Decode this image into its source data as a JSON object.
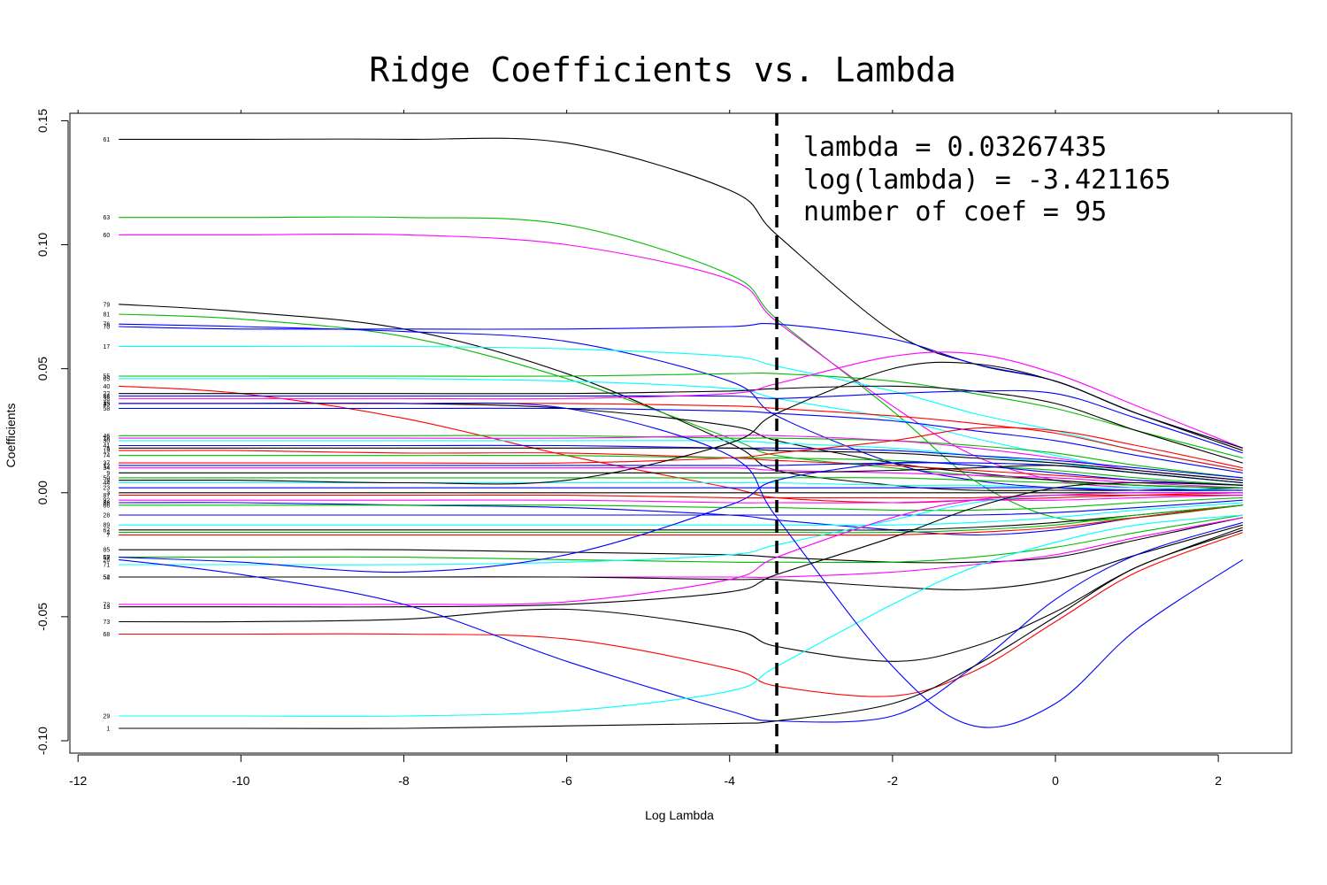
{
  "chart_data": {
    "type": "line",
    "title": "Ridge Coefficients vs. Lambda",
    "xlabel": "Log Lambda",
    "ylabel": "Coefficients",
    "xlim": [
      -12.1,
      2.9
    ],
    "ylim": [
      -0.105,
      0.153
    ],
    "xticks": [
      -12,
      -10,
      -8,
      -6,
      -4,
      -2,
      0,
      2
    ],
    "xtick_labels": [
      "-12",
      "-10",
      "-8",
      "-6",
      "-4",
      "-2",
      "0",
      "2"
    ],
    "yticks": [
      -0.1,
      -0.05,
      0.0,
      0.05,
      0.1,
      0.15
    ],
    "ytick_labels": [
      "-0.10",
      "-0.05",
      "0.00",
      "0.05",
      "0.10",
      "0.15"
    ],
    "grid": false,
    "legend": "none",
    "vline": {
      "x": -3.421165
    },
    "annotations": [
      "lambda = 0.03267435",
      "log(lambda) = -3.421165",
      "number of coef = 95"
    ],
    "x": [
      -11.5,
      -10,
      -8,
      -6,
      -4,
      -3.42,
      -2,
      -1,
      0,
      1,
      2.3
    ],
    "series": [
      {
        "label": "61",
        "color": "#000000",
        "values": [
          0.1425,
          0.1425,
          0.1425,
          0.141,
          0.122,
          0.104,
          0.065,
          0.052,
          0.045,
          0.032,
          0.017
        ]
      },
      {
        "label": "63",
        "color": "#00bb00",
        "values": [
          0.111,
          0.111,
          0.111,
          0.108,
          0.088,
          0.07,
          0.033,
          0.005,
          -0.01,
          -0.01,
          -0.005
        ]
      },
      {
        "label": "60",
        "color": "#ff00ff",
        "values": [
          0.104,
          0.104,
          0.104,
          0.1,
          0.086,
          0.069,
          0.035,
          0.015,
          0.005,
          0.002,
          0.001
        ]
      },
      {
        "label": "79",
        "color": "#000000",
        "values": [
          0.076,
          0.073,
          0.066,
          0.048,
          0.02,
          0.009,
          0.003,
          0.001,
          0.001,
          0.001,
          0.002
        ]
      },
      {
        "label": "81",
        "color": "#00bb00",
        "values": [
          0.072,
          0.07,
          0.063,
          0.046,
          0.022,
          0.015,
          0.01,
          0.007,
          0.005,
          0.003,
          0.002
        ]
      },
      {
        "label": "70",
        "color": "#0000ff",
        "values": [
          0.067,
          0.066,
          0.066,
          0.066,
          0.067,
          0.068,
          0.062,
          0.052,
          0.045,
          0.032,
          0.018
        ]
      },
      {
        "label": "76",
        "color": "#0000ff",
        "values": [
          0.068,
          0.067,
          0.065,
          0.061,
          0.045,
          0.031,
          0.012,
          0.005,
          0.002,
          0.001,
          0.001
        ]
      },
      {
        "label": "17",
        "color": "#00ffff",
        "values": [
          0.059,
          0.059,
          0.059,
          0.058,
          0.055,
          0.051,
          0.041,
          0.032,
          0.025,
          0.017,
          0.009
        ]
      },
      {
        "label": "55",
        "color": "#00bb00",
        "values": [
          0.047,
          0.047,
          0.047,
          0.047,
          0.048,
          0.048,
          0.045,
          0.04,
          0.034,
          0.025,
          0.014
        ]
      },
      {
        "label": "65",
        "color": "#00ffff",
        "values": [
          0.046,
          0.046,
          0.046,
          0.045,
          0.042,
          0.038,
          0.03,
          0.022,
          0.015,
          0.009,
          0.005
        ]
      },
      {
        "label": "40",
        "color": "#ff0000",
        "values": [
          0.043,
          0.04,
          0.03,
          0.015,
          0.002,
          -0.002,
          -0.004,
          -0.003,
          -0.002,
          -0.001,
          0.0
        ]
      },
      {
        "label": "22",
        "color": "#000000",
        "values": [
          0.04,
          0.04,
          0.04,
          0.04,
          0.041,
          0.042,
          0.043,
          0.041,
          0.036,
          0.025,
          0.012
        ]
      },
      {
        "label": "84",
        "color": "#0000ff",
        "values": [
          0.039,
          0.039,
          0.039,
          0.039,
          0.039,
          0.038,
          0.04,
          0.041,
          0.04,
          0.03,
          0.016
        ]
      },
      {
        "label": "38",
        "color": "#ff00ff",
        "values": [
          0.038,
          0.038,
          0.038,
          0.038,
          0.04,
          0.044,
          0.055,
          0.056,
          0.048,
          0.035,
          0.018
        ]
      },
      {
        "label": "35",
        "color": "#ff0000",
        "values": [
          0.036,
          0.036,
          0.036,
          0.036,
          0.035,
          0.034,
          0.031,
          0.028,
          0.024,
          0.017,
          0.009
        ]
      },
      {
        "label": "58",
        "color": "#0000ff",
        "values": [
          0.034,
          0.034,
          0.034,
          0.034,
          0.033,
          0.032,
          0.029,
          0.025,
          0.021,
          0.015,
          0.008
        ]
      },
      {
        "label": "15",
        "color": "#000000",
        "values": [
          0.036,
          0.036,
          0.036,
          0.034,
          0.027,
          0.021,
          0.012,
          0.008,
          0.005,
          0.003,
          0.002
        ]
      },
      {
        "label": "46",
        "color": "#00bb00",
        "values": [
          0.023,
          0.023,
          0.023,
          0.023,
          0.022,
          0.022,
          0.021,
          0.019,
          0.016,
          0.011,
          0.006
        ]
      },
      {
        "label": "18",
        "color": "#ff00ff",
        "values": [
          0.022,
          0.022,
          0.022,
          0.022,
          0.023,
          0.023,
          0.021,
          0.018,
          0.014,
          0.009,
          0.005
        ]
      },
      {
        "label": "30",
        "color": "#00ffff",
        "values": [
          0.021,
          0.021,
          0.021,
          0.021,
          0.021,
          0.02,
          0.018,
          0.015,
          0.012,
          0.008,
          0.004
        ]
      },
      {
        "label": "41",
        "color": "#0000ff",
        "values": [
          0.019,
          0.019,
          0.019,
          0.019,
          0.018,
          0.018,
          0.017,
          0.015,
          0.013,
          0.01,
          0.006
        ]
      },
      {
        "label": "5",
        "color": "#000000",
        "values": [
          0.018,
          0.018,
          0.018,
          0.018,
          0.018,
          0.017,
          0.016,
          0.014,
          0.012,
          0.009,
          0.005
        ]
      },
      {
        "label": "19",
        "color": "#ff0000",
        "values": [
          0.017,
          0.017,
          0.016,
          0.016,
          0.014,
          0.013,
          0.011,
          0.009,
          0.007,
          0.005,
          0.003
        ]
      },
      {
        "label": "74",
        "color": "#00bb00",
        "values": [
          0.015,
          0.015,
          0.015,
          0.015,
          0.014,
          0.014,
          0.013,
          0.011,
          0.009,
          0.006,
          0.003
        ]
      },
      {
        "label": "37",
        "color": "#ff0000",
        "values": [
          0.012,
          0.012,
          0.012,
          0.012,
          0.014,
          0.016,
          0.021,
          0.026,
          0.025,
          0.019,
          0.01
        ]
      },
      {
        "label": "12",
        "color": "#0000ff",
        "values": [
          0.011,
          0.011,
          0.011,
          0.011,
          0.011,
          0.011,
          0.012,
          0.012,
          0.011,
          0.008,
          0.004
        ]
      },
      {
        "label": "34",
        "color": "#ff00ff",
        "values": [
          0.01,
          0.01,
          0.01,
          0.01,
          0.01,
          0.009,
          0.008,
          0.007,
          0.006,
          0.004,
          0.002
        ]
      },
      {
        "label": "9",
        "color": "#000000",
        "values": [
          0.008,
          0.008,
          0.008,
          0.008,
          0.008,
          0.008,
          0.009,
          0.01,
          0.011,
          0.008,
          0.004
        ]
      },
      {
        "label": "50",
        "color": "#00bb00",
        "values": [
          0.006,
          0.006,
          0.006,
          0.006,
          0.006,
          0.006,
          0.006,
          0.005,
          0.004,
          0.003,
          0.002
        ]
      },
      {
        "label": "44",
        "color": "#00ffff",
        "values": [
          0.004,
          0.004,
          0.004,
          0.004,
          0.004,
          0.004,
          0.003,
          0.003,
          0.002,
          0.002,
          0.001
        ]
      },
      {
        "label": "23",
        "color": "#0000ff",
        "values": [
          0.002,
          0.002,
          0.002,
          0.002,
          0.002,
          0.002,
          0.002,
          0.002,
          0.002,
          0.001,
          0.001
        ]
      },
      {
        "label": "3",
        "color": "#000000",
        "values": [
          0.0,
          0.0,
          0.0,
          0.0,
          0.0,
          0.0,
          0.0,
          0.0,
          0.0,
          0.0,
          0.0
        ]
      },
      {
        "label": "87",
        "color": "#ff0000",
        "values": [
          -0.001,
          -0.001,
          -0.001,
          -0.001,
          -0.002,
          -0.002,
          -0.002,
          -0.002,
          -0.001,
          -0.001,
          -0.001
        ]
      },
      {
        "label": "92",
        "color": "#ff00ff",
        "values": [
          -0.003,
          -0.003,
          -0.003,
          -0.003,
          -0.004,
          -0.004,
          -0.004,
          -0.003,
          -0.003,
          -0.002,
          -0.001
        ]
      },
      {
        "label": "88",
        "color": "#0000ff",
        "values": [
          -0.004,
          -0.004,
          -0.005,
          -0.006,
          -0.009,
          -0.011,
          -0.015,
          -0.017,
          -0.015,
          -0.01,
          -0.005
        ]
      },
      {
        "label": "66",
        "color": "#00bb00",
        "values": [
          -0.005,
          -0.005,
          -0.005,
          -0.005,
          -0.006,
          -0.006,
          -0.007,
          -0.007,
          -0.006,
          -0.004,
          -0.002
        ]
      },
      {
        "label": "28",
        "color": "#0000ff",
        "values": [
          -0.009,
          -0.009,
          -0.009,
          -0.009,
          -0.009,
          -0.009,
          -0.009,
          -0.009,
          -0.008,
          -0.006,
          -0.003
        ]
      },
      {
        "label": "89",
        "color": "#00ffff",
        "values": [
          -0.013,
          -0.013,
          -0.013,
          -0.013,
          -0.013,
          -0.013,
          -0.013,
          -0.012,
          -0.01,
          -0.007,
          -0.004
        ]
      },
      {
        "label": "67",
        "color": "#000000",
        "values": [
          -0.015,
          -0.015,
          -0.015,
          -0.015,
          -0.015,
          -0.015,
          -0.015,
          -0.014,
          -0.012,
          -0.009,
          -0.005
        ]
      },
      {
        "label": "7",
        "color": "#ff0000",
        "values": [
          -0.017,
          -0.017,
          -0.017,
          -0.017,
          -0.017,
          -0.017,
          -0.017,
          -0.016,
          -0.014,
          -0.01,
          -0.005
        ]
      },
      {
        "label": "2",
        "color": "#00bb00",
        "values": [
          -0.016,
          -0.016,
          -0.016,
          -0.016,
          -0.016,
          -0.016,
          -0.016,
          -0.015,
          -0.013,
          -0.009,
          -0.005
        ]
      },
      {
        "label": "85",
        "color": "#000000",
        "values": [
          -0.023,
          -0.023,
          -0.023,
          -0.024,
          -0.025,
          -0.026,
          -0.028,
          -0.028,
          -0.026,
          -0.019,
          -0.01
        ]
      },
      {
        "label": "69",
        "color": "#00bb00",
        "values": [
          -0.026,
          -0.026,
          -0.026,
          -0.027,
          -0.028,
          -0.028,
          -0.028,
          -0.026,
          -0.022,
          -0.016,
          -0.009
        ]
      },
      {
        "label": "71",
        "color": "#00ffff",
        "values": [
          -0.029,
          -0.029,
          -0.029,
          -0.028,
          -0.025,
          -0.021,
          -0.011,
          -0.004,
          -0.001,
          0.0,
          0.0
        ]
      },
      {
        "label": "52",
        "color": "#ff00ff",
        "values": [
          -0.034,
          -0.034,
          -0.034,
          -0.034,
          -0.034,
          -0.034,
          -0.032,
          -0.029,
          -0.025,
          -0.018,
          -0.01
        ]
      },
      {
        "label": "54",
        "color": "#000000",
        "values": [
          -0.034,
          -0.034,
          -0.034,
          -0.034,
          -0.035,
          -0.035,
          -0.038,
          -0.039,
          -0.035,
          -0.025,
          -0.013
        ]
      },
      {
        "label": "57",
        "color": "#0000ff",
        "values": [
          -0.026,
          -0.028,
          -0.032,
          -0.025,
          -0.005,
          0.005,
          0.012,
          0.011,
          0.008,
          0.005,
          0.003
        ]
      },
      {
        "label": "72",
        "color": "#ff00ff",
        "values": [
          -0.045,
          -0.045,
          -0.045,
          -0.044,
          -0.035,
          -0.026,
          -0.01,
          -0.003,
          -0.001,
          0.0,
          0.0
        ]
      },
      {
        "label": "13",
        "color": "#000000",
        "values": [
          -0.046,
          -0.046,
          -0.046,
          -0.045,
          -0.04,
          -0.033,
          -0.018,
          -0.006,
          0.002,
          0.004,
          0.003
        ]
      },
      {
        "label": "73",
        "color": "#000000",
        "values": [
          -0.052,
          -0.052,
          -0.051,
          -0.047,
          -0.055,
          -0.062,
          -0.068,
          -0.062,
          -0.048,
          -0.03,
          -0.014
        ]
      },
      {
        "label": "68",
        "color": "#ff0000",
        "values": [
          -0.057,
          -0.057,
          -0.057,
          -0.059,
          -0.071,
          -0.078,
          -0.082,
          -0.072,
          -0.052,
          -0.032,
          -0.016
        ]
      },
      {
        "label": "26",
        "color": "#0000ff",
        "values": [
          -0.027,
          -0.033,
          -0.045,
          -0.068,
          -0.088,
          -0.092,
          -0.09,
          -0.07,
          -0.043,
          -0.025,
          -0.012
        ]
      },
      {
        "label": "29",
        "color": "#00ffff",
        "values": [
          -0.09,
          -0.09,
          -0.09,
          -0.088,
          -0.08,
          -0.07,
          -0.045,
          -0.03,
          -0.02,
          -0.013,
          -0.009
        ]
      },
      {
        "label": "1",
        "color": "#000000",
        "values": [
          -0.095,
          -0.095,
          -0.095,
          -0.094,
          -0.093,
          -0.092,
          -0.085,
          -0.07,
          -0.05,
          -0.03,
          -0.015
        ]
      },
      {
        "label": "43",
        "color": "#0000ff",
        "values": [
          0.036,
          0.036,
          0.036,
          0.034,
          0.015,
          -0.01,
          -0.07,
          -0.094,
          -0.085,
          -0.055,
          -0.027
        ]
      },
      {
        "label": "8",
        "color": "#000000",
        "values": [
          0.005,
          0.005,
          0.004,
          0.005,
          0.02,
          0.032,
          0.05,
          0.052,
          0.045,
          0.032,
          0.018
        ]
      }
    ]
  }
}
